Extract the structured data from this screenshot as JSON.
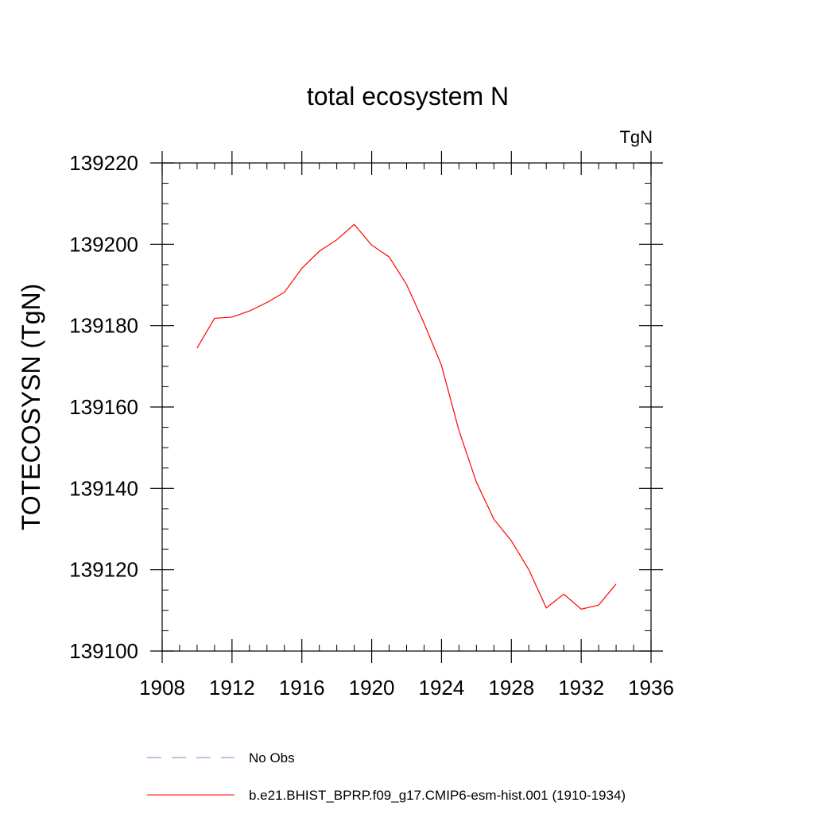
{
  "chart_data": {
    "type": "line",
    "title": "total ecosystem N",
    "units_label": "TgN",
    "ylabel": "TOTECOSYSN  (TgN)",
    "xlabel": "",
    "xlim": [
      1908,
      1936
    ],
    "ylim": [
      139100,
      139220
    ],
    "x_ticks": [
      1908,
      1912,
      1916,
      1920,
      1924,
      1928,
      1932,
      1936
    ],
    "y_ticks": [
      139100,
      139120,
      139140,
      139160,
      139180,
      139200,
      139220
    ],
    "x_tick_labels": [
      "1908",
      "1912",
      "1916",
      "1920",
      "1924",
      "1928",
      "1932",
      "1936"
    ],
    "y_tick_labels": [
      "139100",
      "139120",
      "139140",
      "139160",
      "139180",
      "139200",
      "139220"
    ],
    "grid": false,
    "legend_position": "bottom",
    "series": [
      {
        "name": "No Obs",
        "color": "#8080c0",
        "style": "dashed",
        "x": [],
        "y": []
      },
      {
        "name": "b.e21.BHIST_BPRP.f09_g17.CMIP6-esm-hist.001 (1910-1934)",
        "color": "#ff0000",
        "style": "solid",
        "x": [
          1910,
          1911,
          1912,
          1913,
          1914,
          1915,
          1916,
          1917,
          1918,
          1919,
          1920,
          1921,
          1922,
          1923,
          1924,
          1925,
          1926,
          1927,
          1928,
          1929,
          1930,
          1931,
          1932,
          1933,
          1934
        ],
        "y": [
          139174.5,
          139181.8,
          139182.1,
          139183.6,
          139185.7,
          139188.2,
          139194.1,
          139198.3,
          139201.1,
          139204.9,
          139199.8,
          139196.9,
          139190.1,
          139180.6,
          139170.2,
          139154.2,
          139141.5,
          139132.4,
          139127.1,
          139120.0,
          139110.6,
          139114.0,
          139110.3,
          139111.3,
          139116.5
        ]
      }
    ]
  }
}
